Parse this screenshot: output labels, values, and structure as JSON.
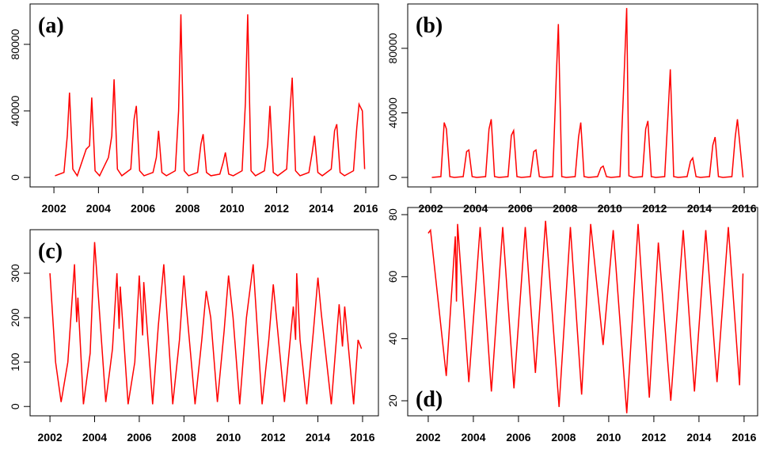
{
  "chart_data": [
    {
      "type": "line",
      "title": "(a)",
      "xlim": [
        2000.93,
        2016.57
      ],
      "ylim": [
        -5714,
        104286
      ],
      "xticks": [
        2002,
        2004,
        2006,
        2008,
        2010,
        2012,
        2014,
        2016
      ],
      "yticks": [
        0,
        40000,
        80000
      ],
      "color": "#ff0000",
      "x": [
        2002.05,
        2002.45,
        2002.6,
        2002.7,
        2002.85,
        2003.05,
        2003.45,
        2003.6,
        2003.7,
        2003.85,
        2004.05,
        2004.45,
        2004.6,
        2004.7,
        2004.85,
        2005.05,
        2005.45,
        2005.6,
        2005.7,
        2005.85,
        2006.05,
        2006.45,
        2006.6,
        2006.7,
        2006.85,
        2007.05,
        2007.45,
        2007.6,
        2007.7,
        2007.85,
        2008.05,
        2008.45,
        2008.6,
        2008.7,
        2008.85,
        2009.05,
        2009.45,
        2009.6,
        2009.7,
        2009.85,
        2010.05,
        2010.45,
        2010.6,
        2010.7,
        2010.85,
        2011.05,
        2011.45,
        2011.6,
        2011.7,
        2011.85,
        2012.05,
        2012.45,
        2012.6,
        2012.7,
        2012.85,
        2013.05,
        2013.45,
        2013.6,
        2013.7,
        2013.85,
        2014.05,
        2014.45,
        2014.6,
        2014.7,
        2014.85,
        2015.05,
        2015.45,
        2015.6,
        2015.7,
        2015.85,
        2015.95
      ],
      "values": [
        1000,
        3000,
        25000,
        51000,
        5000,
        1000,
        17000,
        19000,
        48000,
        4000,
        1000,
        12000,
        25000,
        59000,
        5000,
        1000,
        5000,
        35000,
        43000,
        4000,
        1000,
        3000,
        12000,
        28000,
        3000,
        1000,
        4000,
        40000,
        98000,
        4000,
        1000,
        3000,
        20000,
        26000,
        3000,
        1000,
        2000,
        9000,
        15000,
        2000,
        1000,
        4000,
        45000,
        98000,
        4000,
        1000,
        4000,
        20000,
        43000,
        3000,
        1000,
        5000,
        40000,
        60000,
        4000,
        1000,
        3000,
        15000,
        25000,
        3000,
        1000,
        5000,
        28000,
        32000,
        3000,
        1000,
        4000,
        30000,
        44000,
        40000,
        5000
      ]
    },
    {
      "type": "line",
      "title": "(b)",
      "xlim": [
        2000.97,
        2016.6
      ],
      "ylim": [
        -5890,
        107485
      ],
      "xticks": [
        2002,
        2004,
        2006,
        2008,
        2010,
        2012,
        2014,
        2016
      ],
      "yticks": [
        0,
        40000,
        80000
      ],
      "color": "#ff0000",
      "x": [
        2002.05,
        2002.45,
        2002.6,
        2002.7,
        2002.85,
        2003.05,
        2003.45,
        2003.6,
        2003.7,
        2003.85,
        2004.05,
        2004.45,
        2004.6,
        2004.7,
        2004.85,
        2005.05,
        2005.45,
        2005.6,
        2005.7,
        2005.85,
        2006.05,
        2006.45,
        2006.6,
        2006.7,
        2006.85,
        2007.05,
        2007.45,
        2007.6,
        2007.7,
        2007.85,
        2008.05,
        2008.45,
        2008.6,
        2008.7,
        2008.85,
        2009.05,
        2009.45,
        2009.6,
        2009.7,
        2009.85,
        2010.05,
        2010.45,
        2010.6,
        2010.75,
        2010.85,
        2011.05,
        2011.45,
        2011.6,
        2011.7,
        2011.85,
        2012.05,
        2012.45,
        2012.6,
        2012.7,
        2012.85,
        2013.05,
        2013.45,
        2013.6,
        2013.7,
        2013.85,
        2014.05,
        2014.45,
        2014.6,
        2014.7,
        2014.85,
        2015.05,
        2015.45,
        2015.6,
        2015.7,
        2015.95
      ],
      "values": [
        0,
        500,
        34000,
        30000,
        500,
        0,
        500,
        16000,
        17000,
        500,
        0,
        500,
        30000,
        36000,
        500,
        0,
        500,
        26000,
        29000,
        500,
        0,
        500,
        16000,
        17000,
        500,
        0,
        500,
        60000,
        95000,
        500,
        0,
        500,
        25000,
        34000,
        500,
        0,
        500,
        6000,
        7000,
        500,
        0,
        500,
        50000,
        105000,
        1000,
        0,
        500,
        30000,
        35000,
        500,
        0,
        500,
        40000,
        67000,
        500,
        0,
        500,
        10000,
        12000,
        500,
        0,
        500,
        20000,
        25000,
        500,
        0,
        500,
        25000,
        36000,
        0
      ]
    },
    {
      "type": "line",
      "title": "(c)",
      "xlim": [
        2001.11,
        2016.71
      ],
      "ylim": [
        -21,
        398
      ],
      "xticks": [
        2002,
        2004,
        2006,
        2008,
        2010,
        2012,
        2014,
        2016
      ],
      "yticks": [
        0,
        100,
        200,
        300
      ],
      "color": "#ff0000",
      "x": [
        2002.0,
        2002.25,
        2002.5,
        2002.8,
        2003.1,
        2003.2,
        2003.25,
        2003.5,
        2003.8,
        2004.0,
        2004.5,
        2004.8,
        2005.0,
        2005.1,
        2005.15,
        2005.5,
        2005.8,
        2006.0,
        2006.15,
        2006.2,
        2006.6,
        2006.85,
        2007.1,
        2007.5,
        2007.8,
        2008.0,
        2008.1,
        2008.5,
        2008.8,
        2009.0,
        2009.2,
        2009.5,
        2009.8,
        2010.0,
        2010.2,
        2010.5,
        2010.8,
        2011.1,
        2011.5,
        2011.8,
        2012.0,
        2012.5,
        2012.9,
        2013.0,
        2013.05,
        2013.2,
        2013.5,
        2013.8,
        2014.0,
        2014.15,
        2014.6,
        2014.95,
        2015.1,
        2015.2,
        2015.6,
        2015.8,
        2015.95
      ],
      "values": [
        300,
        100,
        10,
        100,
        320,
        190,
        245,
        5,
        120,
        370,
        10,
        130,
        300,
        175,
        270,
        5,
        100,
        295,
        160,
        280,
        5,
        180,
        320,
        5,
        150,
        295,
        230,
        5,
        150,
        260,
        200,
        10,
        170,
        295,
        200,
        5,
        200,
        320,
        5,
        150,
        275,
        10,
        225,
        150,
        300,
        150,
        5,
        170,
        290,
        210,
        5,
        230,
        135,
        225,
        5,
        150,
        130
      ]
    },
    {
      "type": "line",
      "title": "(d)",
      "xlim": [
        2001.09,
        2016.6
      ],
      "ylim": [
        15.15,
        82.3
      ],
      "xticks": [
        2002,
        2004,
        2006,
        2008,
        2010,
        2012,
        2014,
        2016
      ],
      "yticks": [
        20,
        40,
        60,
        80
      ],
      "color": "#ff0000",
      "x": [
        2002.0,
        2002.1,
        2002.8,
        2003.2,
        2003.25,
        2003.3,
        2003.8,
        2004.3,
        2004.8,
        2005.3,
        2005.8,
        2006.3,
        2006.75,
        2007.2,
        2007.8,
        2008.3,
        2008.8,
        2009.2,
        2009.75,
        2010.2,
        2010.8,
        2011.3,
        2011.8,
        2012.2,
        2012.75,
        2013.3,
        2013.8,
        2014.3,
        2014.8,
        2015.3,
        2015.8,
        2015.95
      ],
      "values": [
        74,
        75,
        28,
        73,
        52,
        77,
        26,
        76,
        23,
        76,
        24,
        76,
        29,
        78,
        18,
        76,
        22,
        77,
        38,
        75,
        16,
        77,
        21,
        71,
        20,
        75,
        23,
        75,
        26,
        76,
        25,
        61
      ]
    }
  ]
}
